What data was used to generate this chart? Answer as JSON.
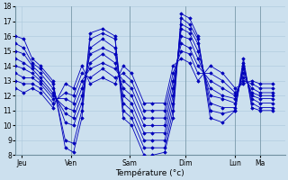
{
  "title": "Température (°c)",
  "bg_color": "#cce0ee",
  "grid_color": "#aac8dc",
  "line_color": "#0000bb",
  "marker": "D",
  "xlim": [
    0,
    130
  ],
  "ylim": [
    8,
    18
  ],
  "yticks": [
    8,
    9,
    10,
    11,
    12,
    13,
    14,
    15,
    16,
    17,
    18
  ],
  "xtick_positions": [
    3,
    27,
    55,
    82,
    106,
    118
  ],
  "xtick_labels": [
    "Jeu",
    "Ven",
    "Sam",
    "Dim",
    "Lun",
    "Ma"
  ],
  "series": [
    {
      "x": [
        0,
        4,
        8,
        12,
        18,
        24,
        28,
        32,
        36,
        42,
        48,
        52,
        56,
        62,
        66,
        72,
        76,
        80,
        84,
        88,
        94,
        100,
        106,
        110,
        114,
        118,
        124
      ],
      "y": [
        16.0,
        15.8,
        14.5,
        14.0,
        13.0,
        8.5,
        8.2,
        10.5,
        16.2,
        16.5,
        16.0,
        10.5,
        10.0,
        8.0,
        8.0,
        8.2,
        10.5,
        17.5,
        17.2,
        16.0,
        10.5,
        10.2,
        11.0,
        14.5,
        11.2,
        11.0,
        11.0
      ]
    },
    {
      "x": [
        0,
        4,
        8,
        12,
        18,
        24,
        28,
        32,
        36,
        42,
        48,
        52,
        56,
        62,
        66,
        72,
        76,
        80,
        84,
        88,
        94,
        100,
        106,
        110,
        114,
        118,
        124
      ],
      "y": [
        15.5,
        15.2,
        14.2,
        13.8,
        12.8,
        9.0,
        8.8,
        11.0,
        15.8,
        16.2,
        15.8,
        11.0,
        10.5,
        8.5,
        8.5,
        8.5,
        11.0,
        17.2,
        16.8,
        15.8,
        11.0,
        10.8,
        11.0,
        14.2,
        11.5,
        11.2,
        11.2
      ]
    },
    {
      "x": [
        0,
        4,
        8,
        12,
        18,
        24,
        28,
        32,
        36,
        42,
        48,
        52,
        56,
        62,
        66,
        72,
        76,
        80,
        84,
        88,
        94,
        100,
        106,
        110,
        114,
        118,
        124
      ],
      "y": [
        15.0,
        14.8,
        14.0,
        13.5,
        12.5,
        10.2,
        10.0,
        11.5,
        15.2,
        15.8,
        15.2,
        11.5,
        11.0,
        9.0,
        9.0,
        9.0,
        11.5,
        16.8,
        16.5,
        15.5,
        11.5,
        11.2,
        11.2,
        14.0,
        11.8,
        11.5,
        11.5
      ]
    },
    {
      "x": [
        0,
        4,
        8,
        12,
        18,
        24,
        28,
        32,
        36,
        42,
        48,
        52,
        56,
        62,
        66,
        72,
        76,
        80,
        84,
        88,
        94,
        100,
        106,
        110,
        114,
        118,
        124
      ],
      "y": [
        14.5,
        14.2,
        13.8,
        13.2,
        12.2,
        10.8,
        10.5,
        12.0,
        14.8,
        15.2,
        14.8,
        12.0,
        11.5,
        9.5,
        9.5,
        9.5,
        12.0,
        16.5,
        16.2,
        15.0,
        12.0,
        11.8,
        11.5,
        13.8,
        12.0,
        11.8,
        11.8
      ]
    },
    {
      "x": [
        0,
        4,
        8,
        12,
        18,
        24,
        28,
        32,
        36,
        42,
        48,
        52,
        56,
        62,
        66,
        72,
        76,
        80,
        84,
        88,
        94,
        100,
        106,
        110,
        114,
        118,
        124
      ],
      "y": [
        14.0,
        13.8,
        13.5,
        13.0,
        12.0,
        11.2,
        11.0,
        12.5,
        14.2,
        14.8,
        14.2,
        12.5,
        12.0,
        10.0,
        10.0,
        10.0,
        12.5,
        16.0,
        15.8,
        14.5,
        12.5,
        12.0,
        11.8,
        13.5,
        12.2,
        12.0,
        12.0
      ]
    },
    {
      "x": [
        0,
        4,
        8,
        12,
        18,
        24,
        28,
        32,
        36,
        42,
        48,
        52,
        56,
        62,
        66,
        72,
        76,
        80,
        84,
        88,
        94,
        100,
        106,
        110,
        114,
        118,
        124
      ],
      "y": [
        13.5,
        13.2,
        13.2,
        12.8,
        11.8,
        11.8,
        11.5,
        13.0,
        13.8,
        14.2,
        13.8,
        13.0,
        12.5,
        10.5,
        10.5,
        10.5,
        13.0,
        15.5,
        15.2,
        14.0,
        13.0,
        12.5,
        12.0,
        13.2,
        12.5,
        12.2,
        12.2
      ]
    },
    {
      "x": [
        0,
        4,
        8,
        12,
        18,
        24,
        28,
        32,
        36,
        42,
        48,
        52,
        56,
        62,
        66,
        72,
        76,
        80,
        84,
        88,
        94,
        100,
        106,
        110,
        114,
        118,
        124
      ],
      "y": [
        13.0,
        12.8,
        12.8,
        12.5,
        11.5,
        12.2,
        12.0,
        13.5,
        13.2,
        13.8,
        13.2,
        13.5,
        13.0,
        11.0,
        11.0,
        11.0,
        13.5,
        15.0,
        14.8,
        13.5,
        13.5,
        13.0,
        12.2,
        13.0,
        12.8,
        12.5,
        12.5
      ]
    },
    {
      "x": [
        0,
        4,
        8,
        12,
        18,
        24,
        28,
        32,
        36,
        42,
        48,
        52,
        56,
        62,
        66,
        72,
        76,
        80,
        84,
        88,
        94,
        100,
        106,
        110,
        114,
        118,
        124
      ],
      "y": [
        12.5,
        12.2,
        12.5,
        12.2,
        11.2,
        12.8,
        12.5,
        14.0,
        12.8,
        13.2,
        12.8,
        14.0,
        13.5,
        11.5,
        11.5,
        11.5,
        14.0,
        14.5,
        14.2,
        13.0,
        14.0,
        13.5,
        12.5,
        12.8,
        13.0,
        12.8,
        12.8
      ]
    }
  ]
}
